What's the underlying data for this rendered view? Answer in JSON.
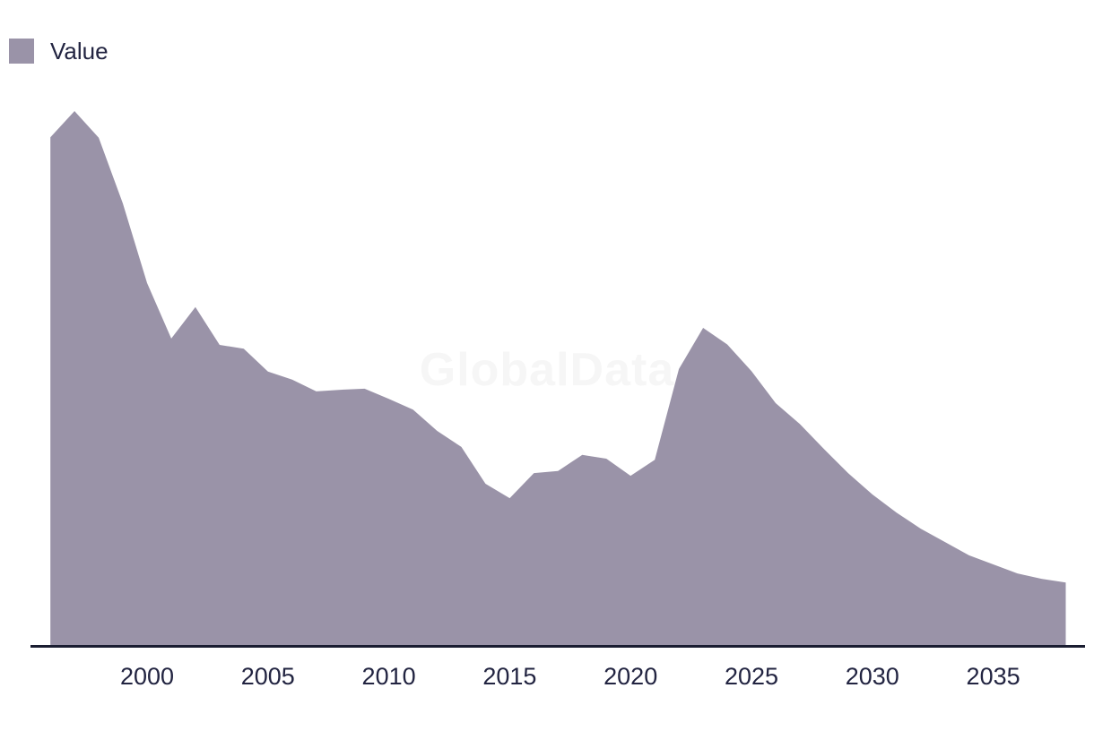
{
  "legend": {
    "label": "Value"
  },
  "watermark": {
    "text": "GlobalData"
  },
  "colors": {
    "background": "#ffffff",
    "area": "#9a93a8",
    "axis_line": "#1a1d31",
    "text": "#222441",
    "watermark": "#f6f6f6"
  },
  "chart_data": {
    "type": "area",
    "title": "",
    "xlabel": "",
    "ylabel": "",
    "legend_position": "top-left",
    "grid": false,
    "y_axis_visible": false,
    "x_tick_labels": [
      "2000",
      "2005",
      "2010",
      "2015",
      "2020",
      "2025",
      "2030",
      "2035"
    ],
    "x_ticks": [
      2000,
      2005,
      2010,
      2015,
      2020,
      2025,
      2030,
      2035
    ],
    "x_range": [
      1996,
      2038
    ],
    "value_range": [
      0,
      100
    ],
    "value_scale_note": "y-axis unlabeled in source; values estimated from pixels, normalized so 1997 peak = 100",
    "series": [
      {
        "name": "Value",
        "x": [
          1996,
          1997,
          1998,
          1999,
          2000,
          2001,
          2002,
          2003,
          2004,
          2005,
          2006,
          2007,
          2008,
          2009,
          2010,
          2011,
          2012,
          2013,
          2014,
          2015,
          2016,
          2017,
          2018,
          2019,
          2020,
          2021,
          2022,
          2023,
          2024,
          2025,
          2026,
          2027,
          2028,
          2029,
          2030,
          2031,
          2032,
          2033,
          2034,
          2035,
          2036,
          2037,
          2038
        ],
        "values": [
          95.1,
          100,
          95.0,
          82.7,
          67.8,
          57.4,
          63.3,
          56.2,
          55.5,
          51.2,
          49.7,
          47.5,
          47.8,
          48.0,
          46.1,
          44.1,
          40.1,
          37.1,
          30.2,
          27.5,
          32.2,
          32.6,
          35.6,
          34.9,
          31.7,
          34.7,
          51.7,
          59.4,
          56.3,
          51.3,
          45.3,
          41.4,
          36.7,
          32.2,
          28.2,
          24.8,
          21.8,
          19.3,
          16.8,
          15.1,
          13.4,
          12.4,
          11.7
        ]
      }
    ]
  }
}
